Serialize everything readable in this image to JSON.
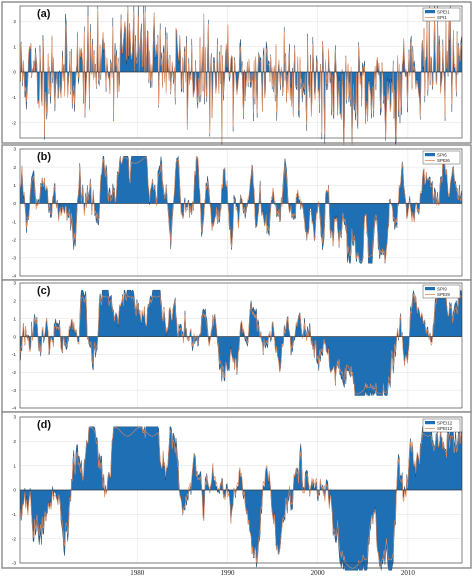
{
  "chart_data": [
    {
      "type": "area",
      "panel_label": "(a)",
      "legend": [
        "SPEI1",
        "SPI1"
      ],
      "series": [
        {
          "name": "SPEI1",
          "style": "filled",
          "color": "#1f6fb4",
          "timescale": 1
        },
        {
          "name": "SPI1",
          "style": "line",
          "color": "#e0895a",
          "timescale": 1
        }
      ],
      "yticks": [
        2,
        1,
        0,
        -1,
        -2
      ],
      "ylim": [
        -2.6,
        2.6
      ],
      "legend_position": "top-right"
    },
    {
      "type": "area",
      "panel_label": "(b)",
      "legend": [
        "SPI6",
        "SPEI6"
      ],
      "series": [
        {
          "name": "SPEI6",
          "style": "filled",
          "color": "#1f6fb4",
          "timescale": 6
        },
        {
          "name": "SPI6",
          "style": "line",
          "color": "#e0895a",
          "timescale": 6
        }
      ],
      "yticks": [
        3,
        2,
        1,
        0,
        -1,
        -2,
        -3,
        -4
      ],
      "ylim": [
        -4,
        3
      ],
      "legend_position": "top-right"
    },
    {
      "type": "area",
      "panel_label": "(c)",
      "legend": [
        "SPI9",
        "SPEI9"
      ],
      "series": [
        {
          "name": "SPEI9",
          "style": "filled",
          "color": "#1f6fb4",
          "timescale": 9
        },
        {
          "name": "SPI9",
          "style": "line",
          "color": "#e0895a",
          "timescale": 9
        }
      ],
      "yticks": [
        3,
        2,
        1,
        0,
        -1,
        -2,
        -3,
        -4
      ],
      "ylim": [
        -4,
        3
      ],
      "legend_position": "top-right"
    },
    {
      "type": "area",
      "panel_label": "(d)",
      "legend": [
        "SPEI12",
        "SPEI12"
      ],
      "series": [
        {
          "name": "SPEI12",
          "style": "filled",
          "color": "#1f6fb4",
          "timescale": 12
        },
        {
          "name": "SPEI12",
          "style": "line",
          "color": "#e0895a",
          "timescale": 12
        }
      ],
      "yticks": [
        3,
        2,
        1,
        0,
        -1,
        -2,
        -3
      ],
      "ylim": [
        -3,
        3
      ],
      "legend_position": "top-right"
    }
  ],
  "x_axis": {
    "start_year": 1967,
    "end_year": 2016,
    "tick_years": [
      1980,
      1990,
      2000,
      2010
    ],
    "tick_labels": [
      "1980",
      "1990",
      "2000",
      "2010"
    ]
  }
}
